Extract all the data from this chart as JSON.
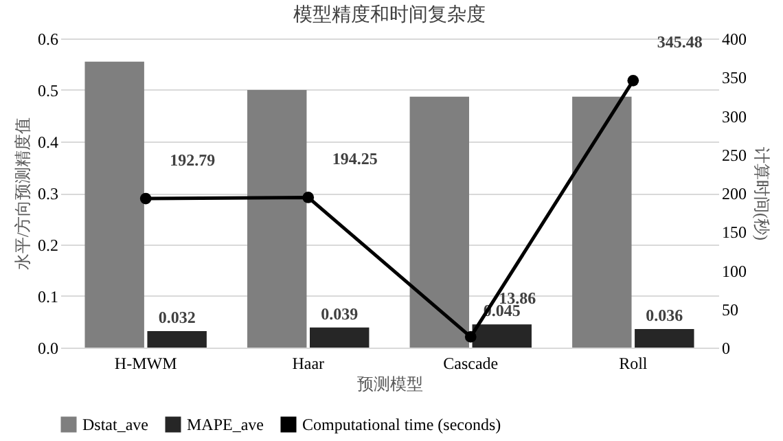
{
  "chart_data": {
    "type": "bar",
    "title": "模型精度和时间复杂度",
    "xlabel": "预测模型",
    "ylabel": "水平/方向预测精度值",
    "y2label": "计算时间(秒)",
    "categories": [
      "H-MWM",
      "Haar",
      "Cascade",
      "Roll"
    ],
    "series": [
      {
        "name": "Dstat_ave",
        "color": "#7f7f7f",
        "values": [
          0.555,
          0.5,
          0.487,
          0.487
        ]
      },
      {
        "name": "MAPE_ave",
        "color": "#262626",
        "values": [
          0.032,
          0.039,
          0.045,
          0.036
        ],
        "value_labels": [
          "0.032",
          "0.039",
          "0.045",
          "0.036"
        ]
      },
      {
        "name": "Computational time (seconds)",
        "type": "line",
        "axis": "y2",
        "color": "#000000",
        "values": [
          192.79,
          194.25,
          13.86,
          345.48
        ],
        "value_labels": [
          "192.79",
          "194.25",
          "13.86",
          "345.48"
        ]
      }
    ],
    "ylim": [
      0,
      0.6
    ],
    "yticks": [
      {
        "value": 0,
        "label": "0.0"
      },
      0.1,
      0.2,
      0.3,
      0.4,
      0.5,
      0.6
    ],
    "y2lim": [
      0,
      400
    ],
    "y2ticks": [
      0,
      50,
      100,
      150,
      200,
      250,
      300,
      350,
      400
    ],
    "grid": "y",
    "legend": "bottom",
    "marker": "circle",
    "line_style": "solid"
  }
}
